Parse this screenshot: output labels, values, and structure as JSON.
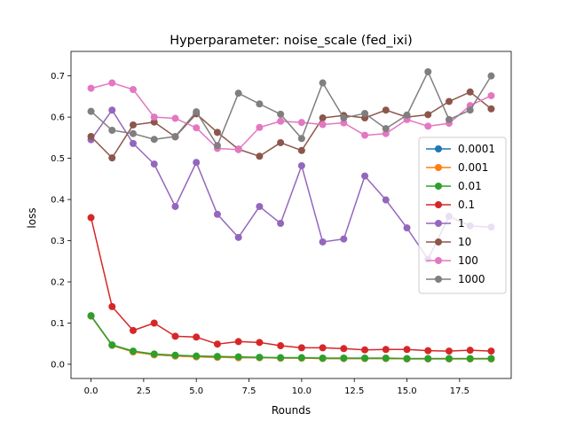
{
  "chart_data": {
    "type": "line",
    "title": "Hyperparameter: noise_scale (fed_ixi)",
    "xlabel": "Rounds",
    "ylabel": "loss",
    "xlim": [
      -0.95,
      19.95
    ],
    "ylim": [
      -0.0345,
      0.7595
    ],
    "xticks": [
      0.0,
      2.5,
      5.0,
      7.5,
      10.0,
      12.5,
      15.0,
      17.5
    ],
    "xtick_labels": [
      "0.0",
      "2.5",
      "5.0",
      "7.5",
      "10.0",
      "12.5",
      "15.0",
      "17.5"
    ],
    "yticks": [
      0.0,
      0.1,
      0.2,
      0.3,
      0.4,
      0.5,
      0.6,
      0.7
    ],
    "ytick_labels": [
      "0.0",
      "0.1",
      "0.2",
      "0.3",
      "0.4",
      "0.5",
      "0.6",
      "0.7"
    ],
    "grid": false,
    "legend_position": "center right",
    "x": [
      0,
      1,
      2,
      3,
      4,
      5,
      6,
      7,
      8,
      9,
      10,
      11,
      12,
      13,
      14,
      15,
      16,
      17,
      18,
      19
    ],
    "series": [
      {
        "name": "0.0001",
        "color": "#1f77b4",
        "values": [
          0.117,
          0.046,
          0.03,
          0.023,
          0.02,
          0.018,
          0.017,
          0.016,
          0.016,
          0.015,
          0.015,
          0.014,
          0.014,
          0.014,
          0.014,
          0.013,
          0.013,
          0.013,
          0.013,
          0.013
        ]
      },
      {
        "name": "0.001",
        "color": "#ff7f0e",
        "values": [
          0.117,
          0.046,
          0.03,
          0.023,
          0.02,
          0.018,
          0.017,
          0.016,
          0.016,
          0.015,
          0.015,
          0.014,
          0.014,
          0.014,
          0.014,
          0.013,
          0.013,
          0.013,
          0.013,
          0.013
        ]
      },
      {
        "name": "0.01",
        "color": "#2ca02c",
        "values": [
          0.118,
          0.047,
          0.032,
          0.025,
          0.022,
          0.02,
          0.019,
          0.018,
          0.017,
          0.016,
          0.016,
          0.015,
          0.015,
          0.015,
          0.015,
          0.014,
          0.014,
          0.014,
          0.014,
          0.014
        ]
      },
      {
        "name": "0.1",
        "color": "#d62728",
        "values": [
          0.356,
          0.14,
          0.082,
          0.1,
          0.068,
          0.066,
          0.049,
          0.055,
          0.053,
          0.045,
          0.04,
          0.04,
          0.038,
          0.035,
          0.036,
          0.036,
          0.033,
          0.032,
          0.034,
          0.032
        ]
      },
      {
        "name": "1",
        "color": "#9467bd",
        "values": [
          0.545,
          0.617,
          0.536,
          0.486,
          0.383,
          0.49,
          0.364,
          0.308,
          0.383,
          0.342,
          0.482,
          0.297,
          0.304,
          0.457,
          0.399,
          0.331,
          0.255,
          0.359,
          0.336,
          0.333
        ]
      },
      {
        "name": "10",
        "color": "#8c564b",
        "values": [
          0.553,
          0.501,
          0.581,
          0.588,
          0.552,
          0.608,
          0.563,
          0.522,
          0.505,
          0.538,
          0.519,
          0.598,
          0.604,
          0.598,
          0.617,
          0.6,
          0.606,
          0.638,
          0.661,
          0.62
        ]
      },
      {
        "name": "100",
        "color": "#e377c2",
        "values": [
          0.67,
          0.683,
          0.667,
          0.6,
          0.597,
          0.574,
          0.524,
          0.521,
          0.575,
          0.59,
          0.587,
          0.582,
          0.586,
          0.556,
          0.56,
          0.594,
          0.578,
          0.585,
          0.628,
          0.652
        ]
      },
      {
        "name": "1000",
        "color": "#7f7f7f",
        "values": [
          0.614,
          0.568,
          0.56,
          0.546,
          0.553,
          0.613,
          0.531,
          0.658,
          0.632,
          0.607,
          0.548,
          0.683,
          0.598,
          0.609,
          0.572,
          0.605,
          0.71,
          0.594,
          0.617,
          0.7
        ]
      }
    ]
  }
}
